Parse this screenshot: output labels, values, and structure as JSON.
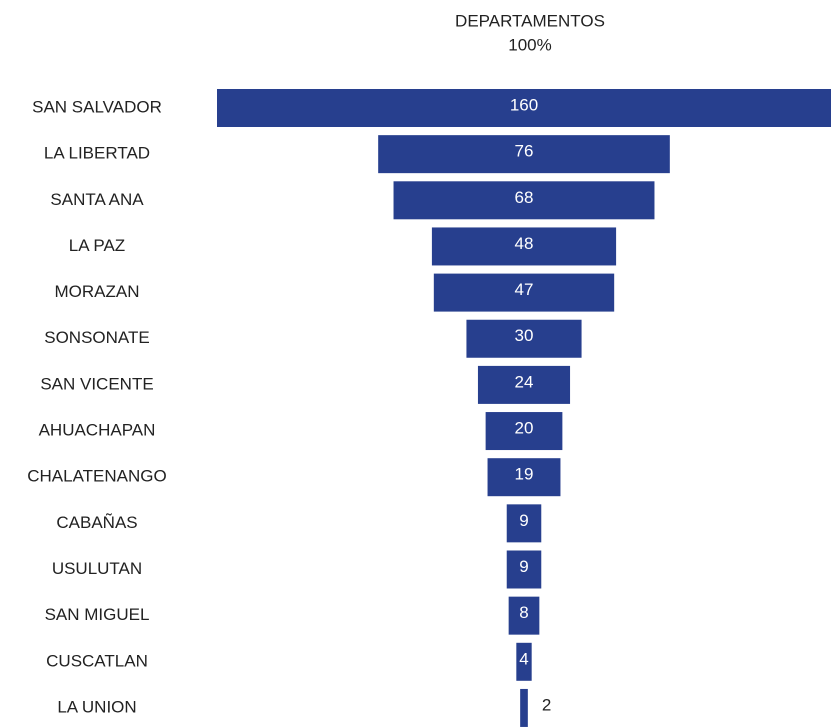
{
  "chart_data": {
    "type": "funnel",
    "title": "DEPARTAMENTOS",
    "subtitle": "100%",
    "categories": [
      "SAN SALVADOR",
      "LA LIBERTAD",
      "SANTA ANA",
      "LA PAZ",
      "MORAZAN",
      "SONSONATE",
      "SAN VICENTE",
      "AHUACHAPAN",
      "CHALATENANGO",
      "CABAÑAS",
      "USULUTAN",
      "SAN MIGUEL",
      "CUSCATLAN",
      "LA UNION"
    ],
    "values": [
      160,
      76,
      68,
      48,
      47,
      30,
      24,
      20,
      19,
      9,
      9,
      8,
      4,
      2
    ],
    "color": "#273f8e"
  }
}
